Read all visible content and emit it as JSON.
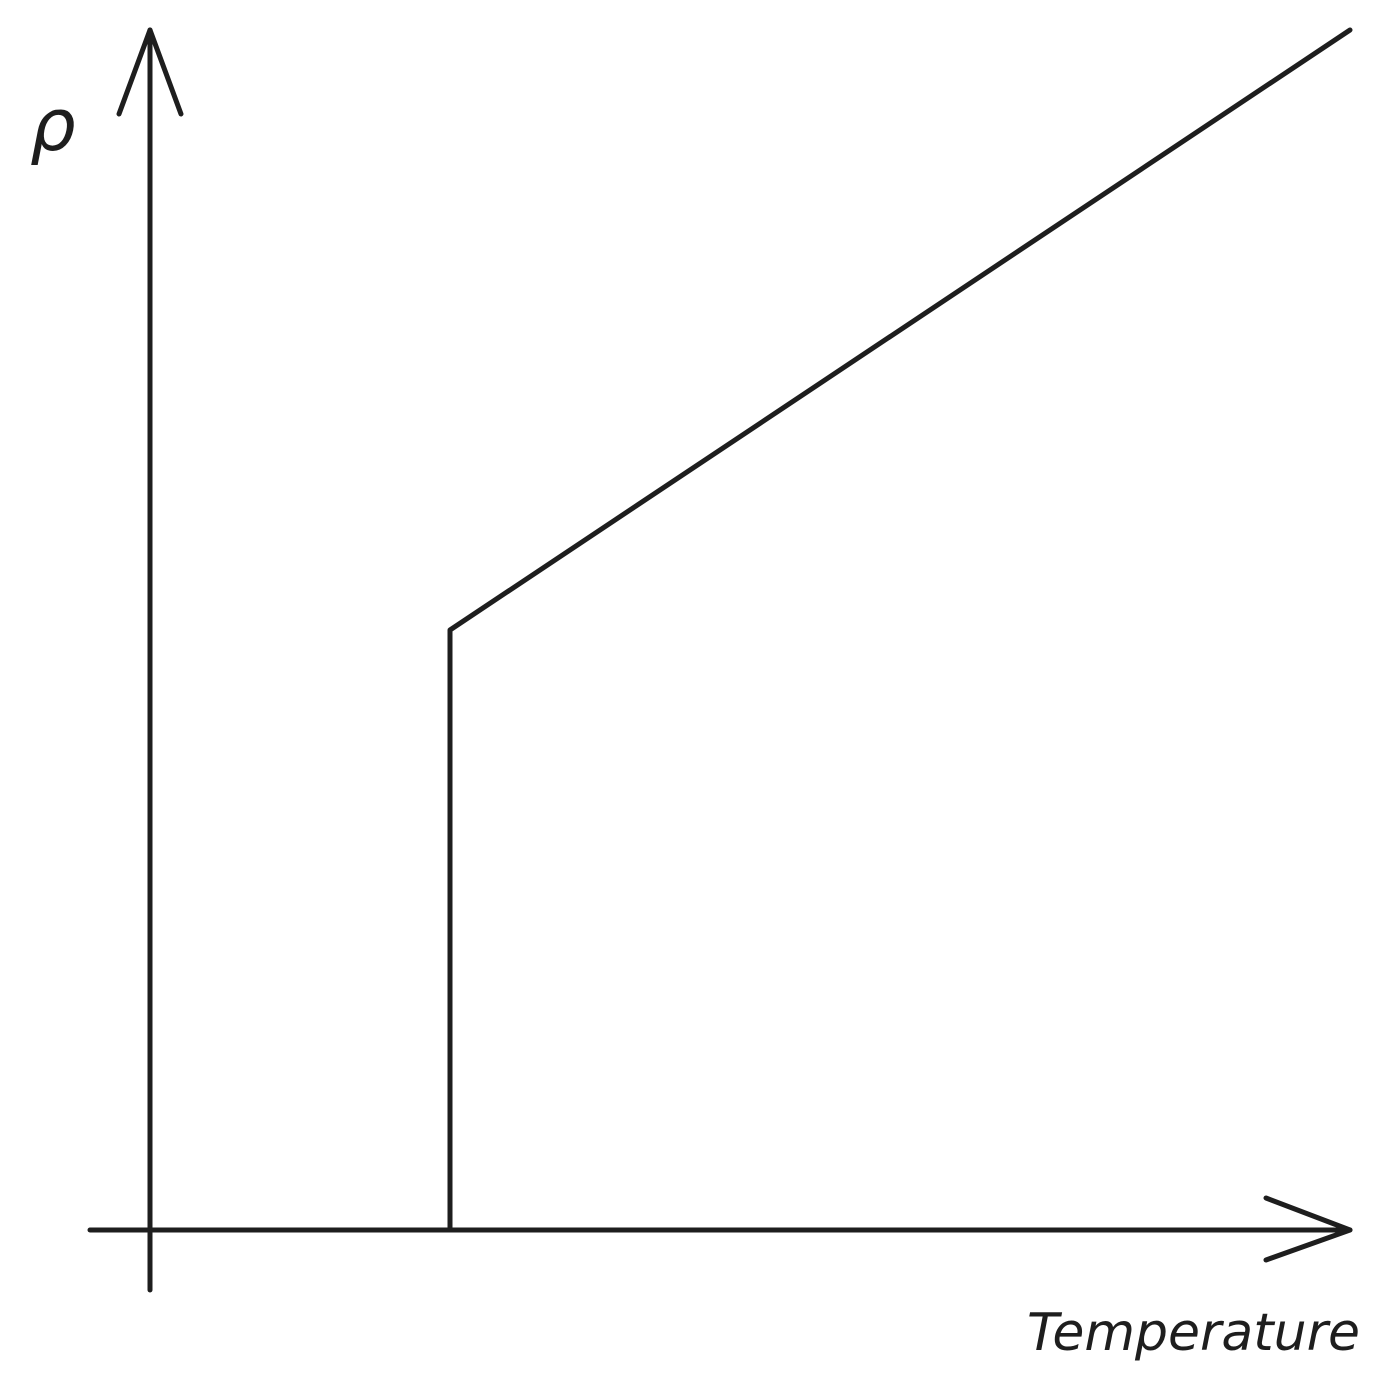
{
  "chart_data": {
    "type": "line",
    "title": "",
    "xlabel": "Temperature",
    "ylabel": "ρ",
    "xlim": [
      0,
      100
    ],
    "ylim": [
      0,
      100
    ],
    "grid": false,
    "ticks": false,
    "series": [
      {
        "x": [
          25,
          25,
          100
        ],
        "y": [
          0,
          50,
          100
        ]
      }
    ],
    "colors": {
      "stroke": "#1e1e1e",
      "background": "#ffffff"
    }
  }
}
